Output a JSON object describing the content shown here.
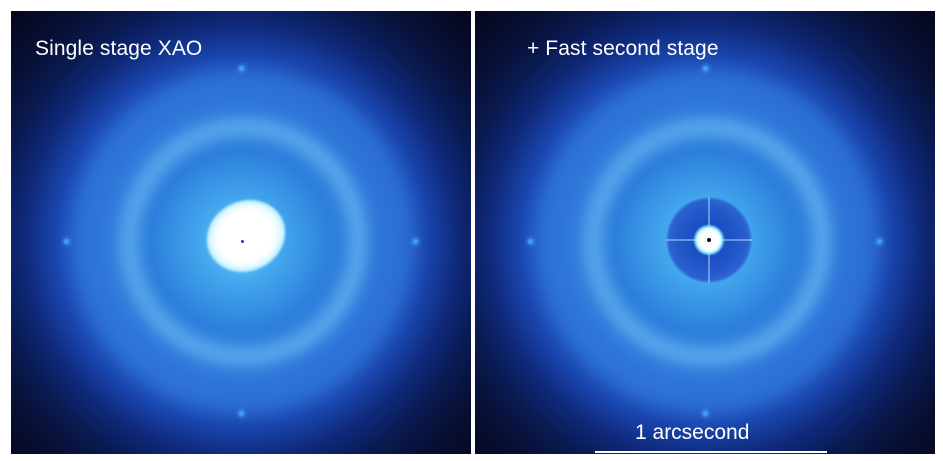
{
  "left_panel": {
    "title": "Single stage XAO"
  },
  "right_panel": {
    "title": "+ Fast second stage",
    "scale_label": "1 arcsecond"
  },
  "colors": {
    "background": "#06061c",
    "halo_inner": "#6ad0ff",
    "halo_outer": "#0a1a52",
    "text": "#ffffff"
  }
}
